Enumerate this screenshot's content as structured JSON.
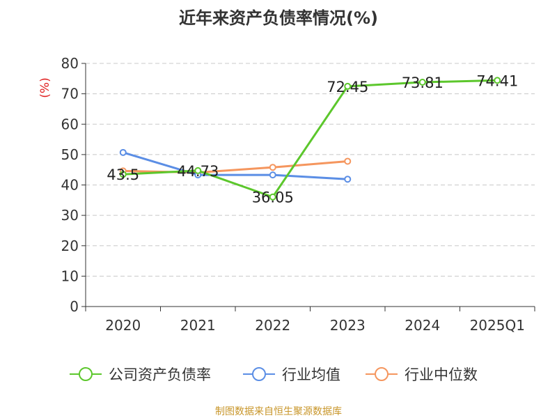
{
  "chart_data": {
    "type": "line",
    "title": "近年来资产负债率情况(%)",
    "ylabel": "(%)",
    "xlabel": "",
    "categories": [
      "2020",
      "2021",
      "2022",
      "2023",
      "2024",
      "2025Q1"
    ],
    "ylim": [
      0,
      80
    ],
    "yticks": [
      0,
      10,
      20,
      30,
      40,
      50,
      60,
      70,
      80
    ],
    "grid": true,
    "legend_position": "bottom",
    "series": [
      {
        "name": "公司资产负债率",
        "color": "#5cc72c",
        "values": [
          43.5,
          44.73,
          36.05,
          72.45,
          73.81,
          74.41
        ],
        "data_labels": [
          "43.5",
          "44.73",
          "36.05",
          "72.45",
          "73.81",
          "74.41"
        ]
      },
      {
        "name": "行业均值",
        "color": "#5b8ee5",
        "values": [
          50.7,
          43.3,
          43.3,
          41.9,
          null,
          null
        ]
      },
      {
        "name": "行业中位数",
        "color": "#f5965e",
        "values": [
          44.6,
          44.1,
          45.8,
          47.8,
          null,
          null
        ]
      }
    ]
  },
  "source_note": "制图数据来自恒生聚源数据库"
}
